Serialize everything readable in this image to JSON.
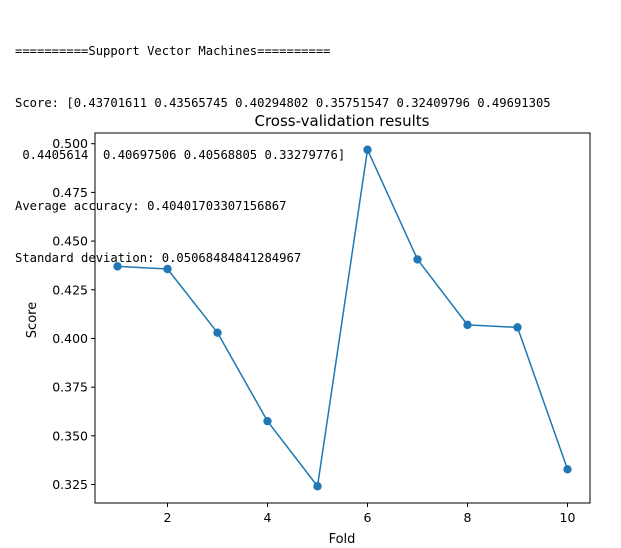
{
  "console": {
    "lines": [
      "==========Support Vector Machines==========",
      "Score: [0.43701611 0.43565745 0.40294802 0.35751547 0.32409796 0.49691305",
      " 0.4405614  0.40697506 0.40568805 0.33279776]",
      "Average accuracy: 0.40401703307156867",
      "Standard deviation: 0.05068484841284967"
    ]
  },
  "chart_data": {
    "type": "line",
    "title": "Cross-validation results",
    "xlabel": "Fold",
    "ylabel": "Score",
    "x": [
      1,
      2,
      3,
      4,
      5,
      6,
      7,
      8,
      9,
      10
    ],
    "values": [
      0.43701611,
      0.43565745,
      0.40294802,
      0.35751547,
      0.32409796,
      0.49691305,
      0.4405614,
      0.40697506,
      0.40568805,
      0.33279776
    ],
    "xticks": [
      "2",
      "4",
      "6",
      "8",
      "10"
    ],
    "yticks": [
      "0.325",
      "0.350",
      "0.375",
      "0.400",
      "0.425",
      "0.450",
      "0.475",
      "0.500"
    ],
    "xlim": [
      0.55,
      10.45
    ],
    "ylim": [
      0.3155,
      0.5055
    ],
    "markers": true,
    "grid": false,
    "color": "#1f77b4"
  }
}
